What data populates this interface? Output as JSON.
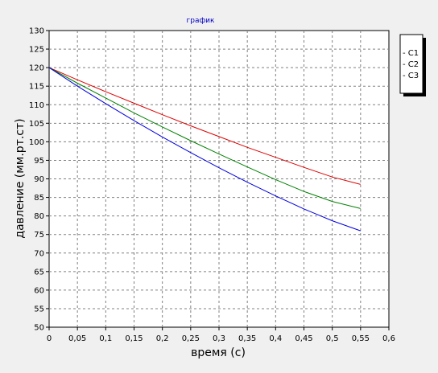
{
  "chart_data": {
    "type": "line",
    "title": "график",
    "xlabel": "время (с)",
    "ylabel": "давление (мм.рт.ст)",
    "xlim": [
      0,
      0.6
    ],
    "ylim": [
      50,
      130
    ],
    "x_ticks": [
      0,
      0.05,
      0.1,
      0.15,
      0.2,
      0.25,
      0.3,
      0.35,
      0.4,
      0.45,
      0.5,
      0.55,
      0.6
    ],
    "x_tick_labels": [
      "0",
      "0,05",
      "0,1",
      "0,15",
      "0,2",
      "0,25",
      "0,3",
      "0,35",
      "0,4",
      "0,45",
      "0,5",
      "0,55",
      "0,6"
    ],
    "y_ticks": [
      50,
      55,
      60,
      65,
      70,
      75,
      80,
      85,
      90,
      95,
      100,
      105,
      110,
      115,
      120,
      125,
      130
    ],
    "y_tick_labels": [
      "50",
      "55",
      "60",
      "65",
      "70",
      "75",
      "80",
      "85",
      "90",
      "95",
      "100",
      "105",
      "110",
      "115",
      "120",
      "125",
      "130"
    ],
    "grid": true,
    "legend_position": "right",
    "x": [
      0,
      0.05,
      0.1,
      0.15,
      0.2,
      0.25,
      0.3,
      0.35,
      0.4,
      0.45,
      0.5,
      0.55
    ],
    "series": [
      {
        "name": "C1",
        "color": "#e00000",
        "values": [
          120,
          116.7,
          113.5,
          110.4,
          107.3,
          104.3,
          101.4,
          98.5,
          95.8,
          93.1,
          90.5,
          88.5
        ]
      },
      {
        "name": "C2",
        "color": "#008000",
        "values": [
          120,
          115.8,
          111.8,
          107.8,
          104.0,
          100.3,
          96.7,
          93.2,
          89.8,
          86.6,
          83.9,
          82.0
        ]
      },
      {
        "name": "C3",
        "color": "#0000e0",
        "values": [
          120,
          115.0,
          110.3,
          105.7,
          101.3,
          97.1,
          93.0,
          89.1,
          85.4,
          81.9,
          78.7,
          76.0
        ]
      }
    ],
    "colors": {
      "background": "#f0f0f0",
      "plot_background": "#ffffff",
      "grid": "#808080",
      "title": "#0000c0"
    }
  }
}
